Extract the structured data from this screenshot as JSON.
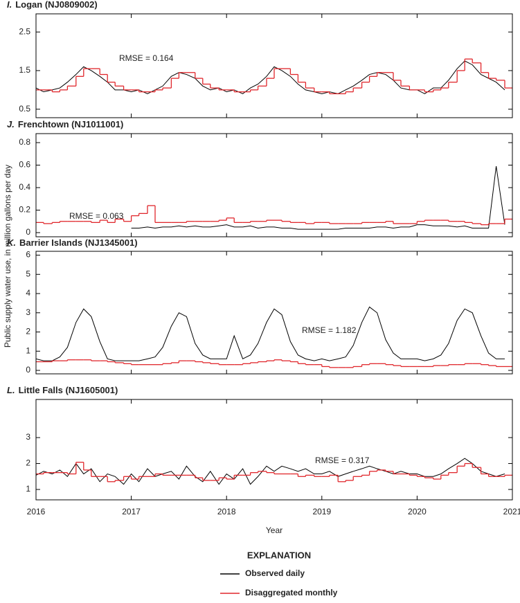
{
  "ylabel": "Public supply water use, in million gallons per day",
  "legend_title": "EXPLANATION",
  "chart_data": [
    {
      "type": "line",
      "label": "I.",
      "title": "Logan (NJ0809002)",
      "annotation": "RMSE = 0.164",
      "x": [
        2016,
        2016.08,
        2016.17,
        2016.25,
        2016.33,
        2016.42,
        2016.5,
        2016.58,
        2016.67,
        2016.75,
        2016.83,
        2016.92,
        2017,
        2017.08,
        2017.17,
        2017.25,
        2017.33,
        2017.42,
        2017.5,
        2017.58,
        2017.67,
        2017.75,
        2017.83,
        2017.92,
        2018,
        2018.08,
        2018.17,
        2018.25,
        2018.33,
        2018.42,
        2018.5,
        2018.58,
        2018.67,
        2018.75,
        2018.83,
        2018.92,
        2019,
        2019.08,
        2019.17,
        2019.25,
        2019.33,
        2019.42,
        2019.5,
        2019.58,
        2019.67,
        2019.75,
        2019.83,
        2019.92,
        2020,
        2020.08,
        2020.17,
        2020.25,
        2020.33,
        2020.42,
        2020.5,
        2020.58,
        2020.67,
        2020.75,
        2020.83,
        2020.92
      ],
      "xlim": [
        2016,
        2021
      ],
      "xticks": [
        2016,
        2017,
        2018,
        2019,
        2020,
        2021
      ],
      "ylim": [
        0.28,
        2.97
      ],
      "yticks": [
        0.5,
        1.5,
        2.5
      ],
      "series": [
        {
          "name": "Observed daily",
          "color": "#000000",
          "values": [
            1.05,
            0.95,
            1.0,
            1.05,
            1.2,
            1.4,
            1.6,
            1.5,
            1.35,
            1.2,
            1.0,
            1.0,
            0.95,
            1.0,
            0.9,
            1.0,
            1.1,
            1.35,
            1.45,
            1.4,
            1.3,
            1.1,
            1.0,
            1.05,
            0.95,
            1.0,
            0.9,
            1.05,
            1.15,
            1.35,
            1.6,
            1.5,
            1.35,
            1.15,
            1.0,
            0.95,
            0.9,
            0.95,
            0.9,
            1.0,
            1.1,
            1.25,
            1.4,
            1.45,
            1.4,
            1.25,
            1.05,
            1.0,
            1.0,
            0.9,
            1.05,
            1.05,
            1.25,
            1.55,
            1.75,
            1.65,
            1.4,
            1.3,
            1.2,
            1.0
          ]
        },
        {
          "name": "Disaggregated monthly",
          "color": "#e0262b",
          "step": true,
          "values": [
            1.0,
            1.0,
            0.95,
            1.0,
            1.1,
            1.35,
            1.55,
            1.55,
            1.4,
            1.2,
            1.1,
            1.0,
            1.0,
            0.95,
            0.95,
            1.0,
            1.05,
            1.3,
            1.45,
            1.45,
            1.3,
            1.15,
            1.05,
            1.0,
            1.0,
            0.95,
            0.95,
            1.0,
            1.1,
            1.3,
            1.55,
            1.55,
            1.4,
            1.2,
            1.05,
            0.95,
            0.95,
            0.9,
            0.9,
            0.95,
            1.05,
            1.2,
            1.35,
            1.45,
            1.45,
            1.25,
            1.1,
            1.0,
            1.0,
            0.95,
            1.0,
            1.05,
            1.2,
            1.5,
            1.8,
            1.7,
            1.45,
            1.3,
            1.25,
            1.05
          ]
        }
      ]
    },
    {
      "type": "line",
      "label": "J.",
      "title": "Frenchtown (NJ1011001)",
      "annotation": "RMSE = 0.063",
      "x": [
        2016,
        2016.08,
        2016.17,
        2016.25,
        2016.33,
        2016.42,
        2016.5,
        2016.58,
        2016.67,
        2016.75,
        2016.83,
        2016.92,
        2017,
        2017.08,
        2017.17,
        2017.25,
        2017.33,
        2017.42,
        2017.5,
        2017.58,
        2017.67,
        2017.75,
        2017.83,
        2017.92,
        2018,
        2018.08,
        2018.17,
        2018.25,
        2018.33,
        2018.42,
        2018.5,
        2018.58,
        2018.67,
        2018.75,
        2018.83,
        2018.92,
        2019,
        2019.08,
        2019.17,
        2019.25,
        2019.33,
        2019.42,
        2019.5,
        2019.58,
        2019.67,
        2019.75,
        2019.83,
        2019.92,
        2020,
        2020.08,
        2020.17,
        2020.25,
        2020.33,
        2020.42,
        2020.5,
        2020.58,
        2020.67,
        2020.75,
        2020.83,
        2020.92
      ],
      "xlim": [
        2016,
        2021
      ],
      "xticks": [
        2016,
        2017,
        2018,
        2019,
        2020,
        2021
      ],
      "ylim": [
        -0.037,
        0.88
      ],
      "yticks": [
        0,
        0.2,
        0.4,
        0.6,
        0.8
      ],
      "series": [
        {
          "name": "Observed daily",
          "color": "#000000",
          "values": [
            null,
            null,
            null,
            null,
            null,
            null,
            null,
            null,
            null,
            null,
            null,
            null,
            0.04,
            0.04,
            0.05,
            0.04,
            0.05,
            0.05,
            0.06,
            0.05,
            0.06,
            0.05,
            0.05,
            0.06,
            0.07,
            0.05,
            0.05,
            0.06,
            0.04,
            0.05,
            0.05,
            0.04,
            0.04,
            0.03,
            0.03,
            0.03,
            0.03,
            0.03,
            0.03,
            0.04,
            0.04,
            0.04,
            0.04,
            0.05,
            0.05,
            0.04,
            0.05,
            0.05,
            0.07,
            0.07,
            0.06,
            0.06,
            0.06,
            0.05,
            0.06,
            0.04,
            0.04,
            0.04,
            0.59,
            0.07
          ]
        },
        {
          "name": "Disaggregated monthly",
          "color": "#e0262b",
          "step": true,
          "values": [
            0.09,
            0.08,
            0.09,
            0.1,
            0.1,
            0.1,
            0.1,
            0.09,
            0.11,
            0.09,
            0.12,
            0.1,
            0.15,
            0.17,
            0.24,
            0.09,
            0.09,
            0.09,
            0.09,
            0.1,
            0.1,
            0.1,
            0.1,
            0.11,
            0.13,
            0.09,
            0.09,
            0.1,
            0.1,
            0.11,
            0.11,
            0.1,
            0.09,
            0.09,
            0.08,
            0.09,
            0.09,
            0.08,
            0.08,
            0.08,
            0.08,
            0.09,
            0.09,
            0.09,
            0.1,
            0.08,
            0.08,
            0.08,
            0.1,
            0.11,
            0.11,
            0.11,
            0.1,
            0.1,
            0.09,
            0.08,
            0.07,
            0.08,
            0.08,
            0.12
          ]
        }
      ]
    },
    {
      "type": "line",
      "label": "K.",
      "title": "Barrier Islands (NJ1345001)",
      "annotation": "RMSE = 1.182",
      "x": [
        2016,
        2016.08,
        2016.17,
        2016.25,
        2016.33,
        2016.42,
        2016.5,
        2016.58,
        2016.67,
        2016.75,
        2016.83,
        2016.92,
        2017,
        2017.08,
        2017.17,
        2017.25,
        2017.33,
        2017.42,
        2017.5,
        2017.58,
        2017.67,
        2017.75,
        2017.83,
        2017.92,
        2018,
        2018.08,
        2018.17,
        2018.25,
        2018.33,
        2018.42,
        2018.5,
        2018.58,
        2018.67,
        2018.75,
        2018.83,
        2018.92,
        2019,
        2019.08,
        2019.17,
        2019.25,
        2019.33,
        2019.42,
        2019.5,
        2019.58,
        2019.67,
        2019.75,
        2019.83,
        2019.92,
        2020,
        2020.08,
        2020.17,
        2020.25,
        2020.33,
        2020.42,
        2020.5,
        2020.58,
        2020.67,
        2020.75,
        2020.83,
        2020.92
      ],
      "xlim": [
        2016,
        2021
      ],
      "xticks": [
        2016,
        2017,
        2018,
        2019,
        2020,
        2021
      ],
      "ylim": [
        -0.18,
        6.2
      ],
      "yticks": [
        0,
        1,
        2,
        3,
        4,
        5,
        6
      ],
      "series": [
        {
          "name": "Observed daily",
          "color": "#000000",
          "values": [
            0.6,
            0.5,
            0.5,
            0.7,
            1.2,
            2.5,
            3.2,
            2.8,
            1.5,
            0.6,
            0.5,
            0.5,
            0.5,
            0.5,
            0.6,
            0.7,
            1.2,
            2.3,
            3.0,
            2.8,
            1.4,
            0.8,
            0.6,
            0.6,
            0.6,
            1.8,
            0.6,
            0.8,
            1.4,
            2.5,
            3.2,
            2.9,
            1.5,
            0.8,
            0.6,
            0.5,
            0.6,
            0.5,
            0.6,
            0.7,
            1.3,
            2.5,
            3.3,
            3.0,
            1.6,
            0.9,
            0.6,
            0.6,
            0.6,
            0.5,
            0.6,
            0.8,
            1.4,
            2.6,
            3.2,
            3.0,
            1.8,
            0.9,
            0.6,
            0.6
          ]
        },
        {
          "name": "Disaggregated monthly",
          "color": "#e0262b",
          "step": true,
          "values": [
            0.45,
            0.45,
            0.5,
            0.5,
            0.55,
            0.55,
            0.55,
            0.5,
            0.5,
            0.45,
            0.4,
            0.35,
            0.3,
            0.3,
            0.3,
            0.3,
            0.35,
            0.4,
            0.5,
            0.5,
            0.45,
            0.4,
            0.35,
            0.3,
            0.3,
            0.3,
            0.35,
            0.4,
            0.45,
            0.5,
            0.55,
            0.5,
            0.45,
            0.35,
            0.3,
            0.3,
            0.2,
            0.15,
            0.15,
            0.15,
            0.2,
            0.3,
            0.35,
            0.35,
            0.3,
            0.25,
            0.2,
            0.2,
            0.2,
            0.2,
            0.25,
            0.25,
            0.3,
            0.3,
            0.35,
            0.35,
            0.3,
            0.25,
            0.2,
            0.2
          ]
        }
      ]
    },
    {
      "type": "line",
      "label": "L.",
      "title": "Little Falls (NJ1605001)",
      "annotation": "RMSE = 0.317",
      "xlabel": "Year",
      "x": [
        2016,
        2016.08,
        2016.17,
        2016.25,
        2016.33,
        2016.42,
        2016.5,
        2016.58,
        2016.67,
        2016.75,
        2016.83,
        2016.92,
        2017,
        2017.08,
        2017.17,
        2017.25,
        2017.33,
        2017.42,
        2017.5,
        2017.58,
        2017.67,
        2017.75,
        2017.83,
        2017.92,
        2018,
        2018.08,
        2018.17,
        2018.25,
        2018.33,
        2018.42,
        2018.5,
        2018.58,
        2018.67,
        2018.75,
        2018.83,
        2018.92,
        2019,
        2019.08,
        2019.17,
        2019.25,
        2019.33,
        2019.42,
        2019.5,
        2019.58,
        2019.67,
        2019.75,
        2019.83,
        2019.92,
        2020,
        2020.08,
        2020.17,
        2020.25,
        2020.33,
        2020.42,
        2020.5,
        2020.58,
        2020.67,
        2020.75,
        2020.83,
        2020.92
      ],
      "xlim": [
        2016,
        2021
      ],
      "xticks": [
        2016,
        2017,
        2018,
        2019,
        2020,
        2021
      ],
      "ylim": [
        0.6,
        4.47
      ],
      "yticks": [
        1,
        2,
        3
      ],
      "series": [
        {
          "name": "Observed daily",
          "color": "#000000",
          "values": [
            1.55,
            1.7,
            1.6,
            1.75,
            1.5,
            2.0,
            1.6,
            1.8,
            1.3,
            1.6,
            1.5,
            1.2,
            1.6,
            1.3,
            1.8,
            1.5,
            1.6,
            1.7,
            1.4,
            1.9,
            1.5,
            1.3,
            1.7,
            1.2,
            1.6,
            1.4,
            1.8,
            1.2,
            1.5,
            1.9,
            1.7,
            1.9,
            1.8,
            1.7,
            1.8,
            1.6,
            1.6,
            1.7,
            1.5,
            1.6,
            1.7,
            1.8,
            1.9,
            1.8,
            1.7,
            1.6,
            1.7,
            1.6,
            1.6,
            1.5,
            1.5,
            1.6,
            1.8,
            2.0,
            2.2,
            2.0,
            1.7,
            1.6,
            1.5,
            1.6
          ]
        },
        {
          "name": "Disaggregated monthly",
          "color": "#e0262b",
          "step": true,
          "values": [
            1.6,
            1.65,
            1.65,
            1.65,
            1.6,
            2.05,
            1.75,
            1.5,
            1.5,
            1.3,
            1.35,
            1.5,
            1.4,
            1.5,
            1.5,
            1.6,
            1.55,
            1.55,
            1.55,
            1.55,
            1.45,
            1.35,
            1.35,
            1.45,
            1.4,
            1.55,
            1.55,
            1.65,
            1.7,
            1.65,
            1.6,
            1.6,
            1.6,
            1.5,
            1.55,
            1.5,
            1.5,
            1.55,
            1.3,
            1.35,
            1.5,
            1.55,
            1.7,
            1.75,
            1.7,
            1.6,
            1.6,
            1.55,
            1.5,
            1.45,
            1.4,
            1.55,
            1.65,
            1.9,
            2.0,
            1.85,
            1.6,
            1.5,
            1.5,
            1.55
          ]
        }
      ]
    }
  ]
}
